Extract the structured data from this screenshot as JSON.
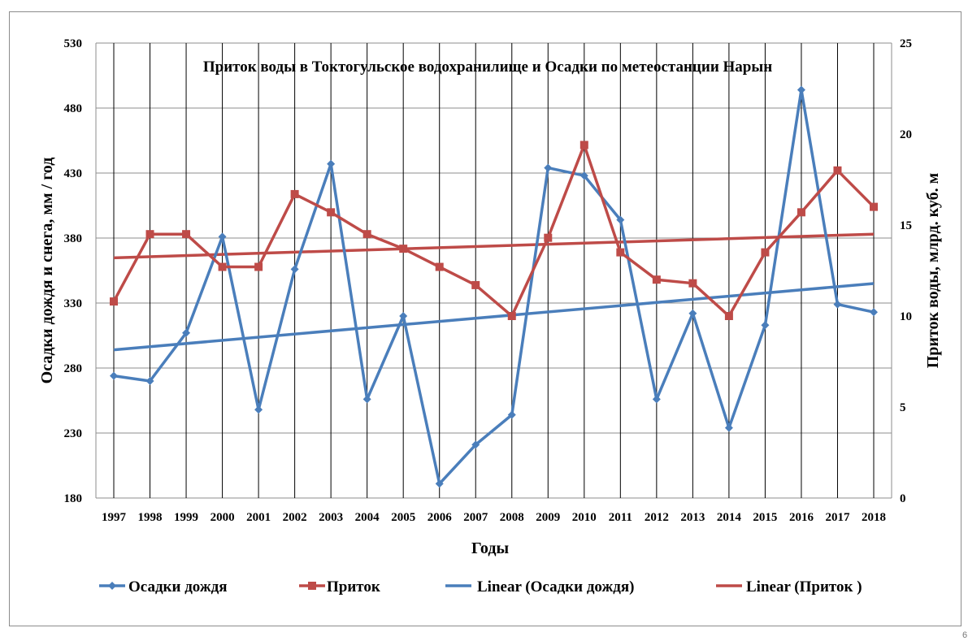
{
  "chart_data": {
    "type": "line",
    "title": "Приток воды в Токтогульское водохранилище  и  Осадки  по  метеостанции  Нарын",
    "xlabel": "Годы",
    "ylabel_left": "Осадки дождя и снега,  мм / год",
    "ylabel_right": "Приток воды,  млрд. куб. м",
    "categories": [
      "1997",
      "1998",
      "1999",
      "2000",
      "2001",
      "2002",
      "2003",
      "2004",
      "2005",
      "2006",
      "2007",
      "2008",
      "2009",
      "2010",
      "2011",
      "2012",
      "2013",
      "2014",
      "2015",
      "2016",
      "2017",
      "2018"
    ],
    "y_left": {
      "min": 180,
      "max": 530,
      "ticks": [
        180,
        230,
        280,
        330,
        380,
        430,
        480,
        530
      ]
    },
    "y_right": {
      "min": 0,
      "max": 25,
      "ticks": [
        0,
        5,
        10,
        15,
        20,
        25
      ]
    },
    "grid": true,
    "legend_position": "bottom",
    "series": [
      {
        "name": "Осадки дождя",
        "axis": "left",
        "color": "#4a7ebb",
        "marker": "diamond",
        "values": [
          274,
          270,
          307,
          381,
          248,
          356,
          437,
          256,
          320,
          191,
          221,
          244,
          434,
          428,
          394,
          256,
          322,
          234,
          313,
          494,
          329,
          323
        ]
      },
      {
        "name": "Приток",
        "axis": "right",
        "color": "#be4b48",
        "marker": "square",
        "values": [
          10.8,
          14.5,
          14.5,
          12.7,
          12.7,
          16.7,
          15.7,
          14.5,
          13.7,
          12.7,
          11.7,
          10.0,
          14.3,
          19.4,
          13.5,
          12.0,
          11.8,
          10.0,
          13.5,
          15.7,
          18.0,
          16.0
        ]
      }
    ],
    "trendlines": [
      {
        "name": "Linear (Осадки дождя)",
        "of_series": "Осадки дождя",
        "axis": "left",
        "color": "#4a7ebb",
        "start": 294,
        "end": 345
      },
      {
        "name": "Linear (Приток )",
        "of_series": "Приток",
        "axis": "right",
        "color": "#be4b48",
        "start": 13.2,
        "end": 14.5
      }
    ],
    "legend": [
      "Осадки дождя",
      "Приток",
      "Linear (Осадки дождя)",
      "Linear (Приток )"
    ]
  },
  "corner_mark": "6"
}
